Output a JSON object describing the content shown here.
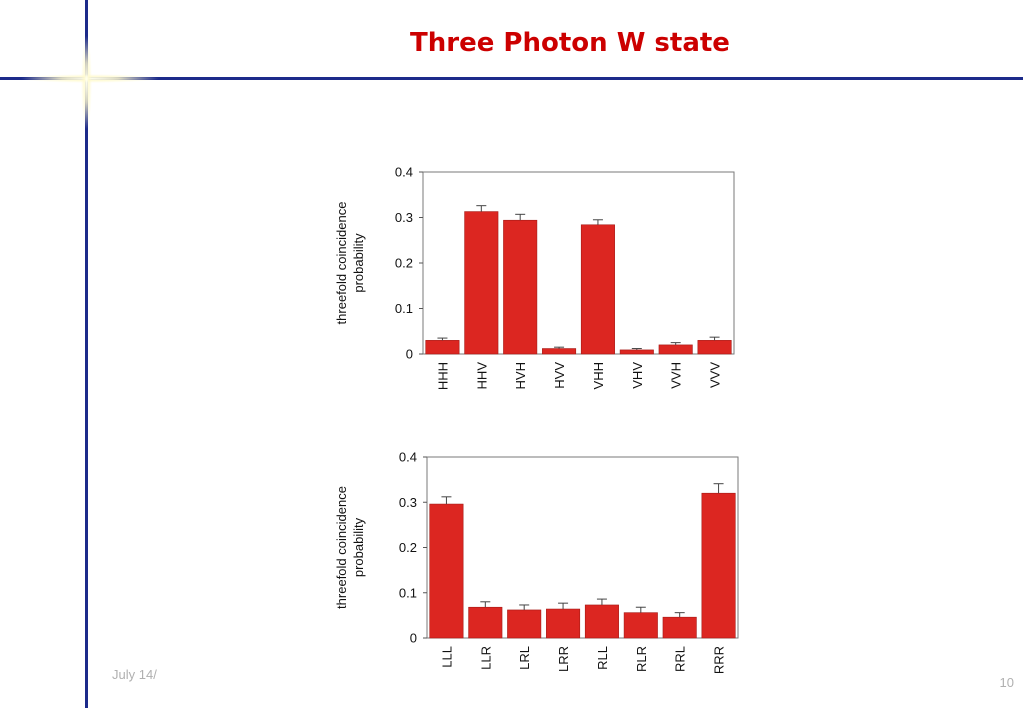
{
  "slide": {
    "title": "Three Photon W state",
    "footer_date": "July 14/",
    "page_number": "10"
  },
  "colors": {
    "bar": "#dc2621",
    "accent_line": "#1c2a8a",
    "title": "#cc0000"
  },
  "chart_data": [
    {
      "type": "bar",
      "title": "",
      "xlabel": "",
      "ylabel": [
        "threefold coincidence",
        "probability"
      ],
      "ylim": [
        0,
        0.4
      ],
      "yticks": [
        "0",
        "0.1",
        "0.2",
        "0.3",
        "0.4"
      ],
      "categories": [
        "HHH",
        "HHV",
        "HVH",
        "HVV",
        "VHH",
        "VHV",
        "VVH",
        "VVV"
      ],
      "values": [
        0.03,
        0.313,
        0.294,
        0.012,
        0.284,
        0.009,
        0.02,
        0.03
      ],
      "errors": [
        0.005,
        0.013,
        0.013,
        0.003,
        0.011,
        0.003,
        0.005,
        0.007
      ],
      "grid": false
    },
    {
      "type": "bar",
      "title": "",
      "xlabel": "",
      "ylabel": [
        "threefold coincidence",
        "probability"
      ],
      "ylim": [
        0,
        0.4
      ],
      "yticks": [
        "0",
        "0.1",
        "0.2",
        "0.3",
        "0.4"
      ],
      "categories": [
        "LLL",
        "LLR",
        "LRL",
        "LRR",
        "RLL",
        "RLR",
        "RRL",
        "RRR"
      ],
      "values": [
        0.296,
        0.068,
        0.062,
        0.064,
        0.073,
        0.056,
        0.046,
        0.32
      ],
      "errors": [
        0.016,
        0.012,
        0.011,
        0.013,
        0.013,
        0.012,
        0.01,
        0.021
      ],
      "grid": false
    }
  ]
}
